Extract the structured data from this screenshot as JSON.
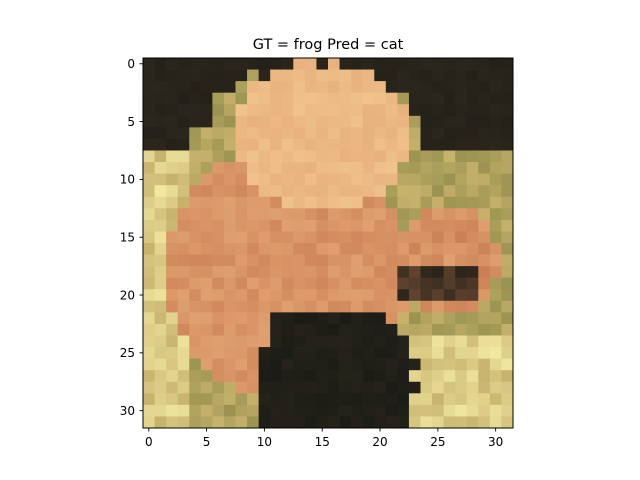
{
  "chart_data": {
    "type": "heatmap",
    "title": "GT = frog Pred = cat",
    "xlabel": "",
    "ylabel": "",
    "image_size": [
      32,
      32
    ],
    "origin": "upper",
    "xlim": [
      -0.5,
      31.5
    ],
    "ylim": [
      31.5,
      -0.5
    ],
    "x_ticks": [
      0,
      5,
      10,
      15,
      20,
      25,
      30
    ],
    "y_ticks": [
      0,
      5,
      10,
      15,
      20,
      25,
      30
    ],
    "x_tick_labels": [
      "0",
      "5",
      "10",
      "15",
      "20",
      "25",
      "30"
    ],
    "y_tick_labels": [
      "0",
      "5",
      "10",
      "15",
      "20",
      "25",
      "30"
    ],
    "grid": false,
    "colors": {
      "background": "#2b261d",
      "skin_highlight": "#f0c28c",
      "skin": "#e0a070",
      "skin_shadow": "#c87c52",
      "leaf_light": "#f1e7a0",
      "leaf": "#c7b26c",
      "leaf_dark": "#8f8a4a",
      "dark_shadow": "#1c1c16"
    }
  }
}
